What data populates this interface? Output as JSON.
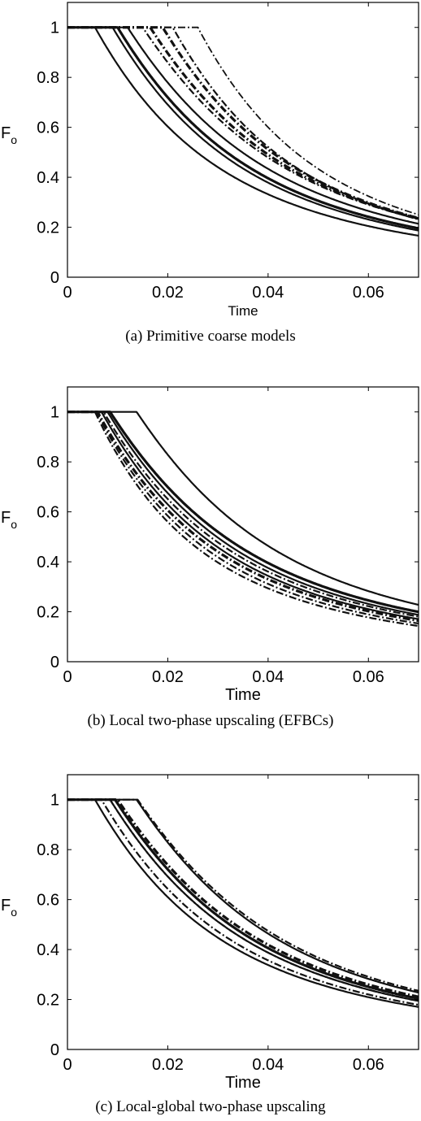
{
  "chart_data": [
    {
      "type": "line",
      "caption": "(a) Primitive coarse models",
      "xlabel": "Time",
      "ylabel_main": "F",
      "ylabel_sub": "o",
      "xlim": [
        0,
        0.07
      ],
      "ylim": [
        0,
        1.1
      ],
      "xticks": [
        0,
        0.02,
        0.04,
        0.06
      ],
      "xtick_labels": [
        "0",
        "0.02",
        "0.04",
        "0.06"
      ],
      "yticks": [
        0,
        0.2,
        0.4,
        0.6,
        0.8,
        1
      ],
      "ytick_labels": [
        "0",
        "0.2",
        "0.4",
        "0.6",
        "0.8",
        "1"
      ],
      "series": [
        {
          "style": "solid",
          "width": 2.2,
          "t0": 0.0055,
          "k": 36
        },
        {
          "style": "solid",
          "width": 2.2,
          "t0": 0.009,
          "k": 34
        },
        {
          "style": "solid",
          "width": 3.2,
          "t0": 0.01,
          "k": 33
        },
        {
          "style": "solid",
          "width": 2.2,
          "t0": 0.012,
          "k": 31
        },
        {
          "style": "dashdot",
          "width": 2.2,
          "t0": 0.015,
          "k": 30
        },
        {
          "style": "dashdot",
          "width": 3.2,
          "t0": 0.0165,
          "k": 31
        },
        {
          "style": "dashdot",
          "width": 3.2,
          "t0": 0.019,
          "k": 33
        },
        {
          "style": "dashdot",
          "width": 2.2,
          "t0": 0.021,
          "k": 36
        },
        {
          "style": "dashdot",
          "width": 1.8,
          "t0": 0.026,
          "k": 38
        }
      ]
    },
    {
      "type": "line",
      "caption": "(b) Local two-phase upscaling (EFBCs)",
      "xlabel": "Time",
      "ylabel_main": "F",
      "ylabel_sub": "o",
      "xlim": [
        0,
        0.07
      ],
      "ylim": [
        0,
        1.1
      ],
      "xticks": [
        0,
        0.02,
        0.04,
        0.06
      ],
      "xtick_labels": [
        "0",
        "0.02",
        "0.04",
        "0.06"
      ],
      "yticks": [
        0,
        0.2,
        0.4,
        0.6,
        0.8,
        1
      ],
      "ytick_labels": [
        "0",
        "0.2",
        "0.4",
        "0.6",
        "0.8",
        "1"
      ],
      "series": [
        {
          "style": "solid",
          "width": 2.2,
          "t0": 0.0138,
          "k": 30
        },
        {
          "style": "solid",
          "width": 3.2,
          "t0": 0.0085,
          "k": 31
        },
        {
          "style": "solid",
          "width": 2.2,
          "t0": 0.008,
          "k": 33
        },
        {
          "style": "solid",
          "width": 2.2,
          "t0": 0.0068,
          "k": 36
        },
        {
          "style": "dashdot",
          "width": 2.2,
          "t0": 0.0072,
          "k": 34
        },
        {
          "style": "dashdot",
          "width": 3.2,
          "t0": 0.006,
          "k": 37
        },
        {
          "style": "dashdot",
          "width": 2.2,
          "t0": 0.0058,
          "k": 40
        },
        {
          "style": "dashdot",
          "width": 2.2,
          "t0": 0.0055,
          "k": 43
        }
      ]
    },
    {
      "type": "line",
      "caption": "(c) Local-global two-phase upscaling",
      "xlabel": "Time",
      "ylabel_main": "F",
      "ylabel_sub": "o",
      "xlim": [
        0,
        0.07
      ],
      "ylim": [
        0,
        1.1
      ],
      "xticks": [
        0,
        0.02,
        0.04,
        0.06
      ],
      "xtick_labels": [
        "0",
        "0.02",
        "0.04",
        "0.06"
      ],
      "yticks": [
        0,
        0.2,
        0.4,
        0.6,
        0.8,
        1
      ],
      "ytick_labels": [
        "0",
        "0.2",
        "0.4",
        "0.6",
        "0.8",
        "1"
      ],
      "series": [
        {
          "style": "solid",
          "width": 2.2,
          "t0": 0.0138,
          "k": 30
        },
        {
          "style": "solid",
          "width": 3.2,
          "t0": 0.0095,
          "k": 31
        },
        {
          "style": "solid",
          "width": 2.2,
          "t0": 0.0085,
          "k": 32
        },
        {
          "style": "solid",
          "width": 2.2,
          "t0": 0.0055,
          "k": 35
        },
        {
          "style": "dashdot",
          "width": 2.2,
          "t0": 0.014,
          "k": 29
        },
        {
          "style": "dashdot",
          "width": 3.2,
          "t0": 0.01,
          "k": 30
        },
        {
          "style": "dashdot",
          "width": 2.2,
          "t0": 0.0085,
          "k": 32
        },
        {
          "style": "dashdot",
          "width": 2.2,
          "t0": 0.0068,
          "k": 34
        }
      ]
    }
  ]
}
